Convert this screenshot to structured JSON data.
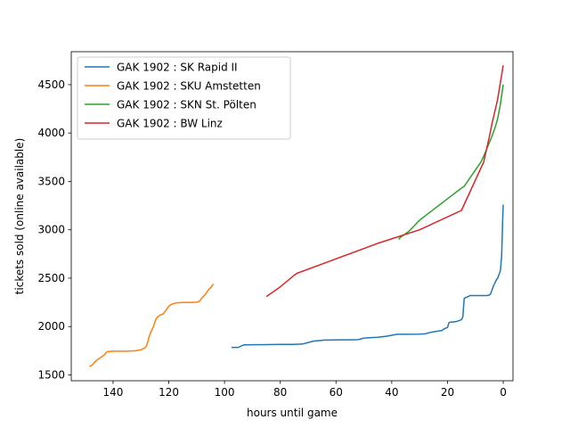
{
  "chart_data": {
    "type": "line",
    "title": "",
    "xlabel": "hours until game",
    "ylabel": "tickets sold (online available)",
    "xlim": [
      155,
      -3.5
    ],
    "ylim": [
      1440,
      4840
    ],
    "x_reversed": true,
    "xticks": [
      140,
      120,
      100,
      80,
      60,
      40,
      20,
      0
    ],
    "yticks": [
      1500,
      2000,
      2500,
      3000,
      3500,
      4000,
      4500
    ],
    "grid": false,
    "legend_position": "top-left",
    "series": [
      {
        "name": "GAK 1902 : SK Rapid II",
        "color": "#1f77b4",
        "points": [
          [
            97.5,
            1785
          ],
          [
            95,
            1785
          ],
          [
            94,
            1800
          ],
          [
            93,
            1810
          ],
          [
            90,
            1812
          ],
          [
            85,
            1813
          ],
          [
            80,
            1815
          ],
          [
            75,
            1816
          ],
          [
            72,
            1820
          ],
          [
            70,
            1835
          ],
          [
            68,
            1850
          ],
          [
            66,
            1855
          ],
          [
            64,
            1860
          ],
          [
            60,
            1862
          ],
          [
            55,
            1863
          ],
          [
            52,
            1865
          ],
          [
            50,
            1880
          ],
          [
            48,
            1885
          ],
          [
            45,
            1890
          ],
          [
            42,
            1900
          ],
          [
            40,
            1910
          ],
          [
            38,
            1920
          ],
          [
            35,
            1920
          ],
          [
            30,
            1922
          ],
          [
            28,
            1925
          ],
          [
            26,
            1940
          ],
          [
            24,
            1950
          ],
          [
            22,
            1960
          ],
          [
            21,
            1980
          ],
          [
            20,
            1990
          ],
          [
            19.5,
            2040
          ],
          [
            19,
            2045
          ],
          [
            17,
            2050
          ],
          [
            16,
            2060
          ],
          [
            15,
            2070
          ],
          [
            14.5,
            2100
          ],
          [
            14,
            2290
          ],
          [
            13.5,
            2300
          ],
          [
            12.5,
            2310
          ],
          [
            12,
            2320
          ],
          [
            10,
            2320
          ],
          [
            6,
            2320
          ],
          [
            5,
            2325
          ],
          [
            4.5,
            2340
          ],
          [
            4,
            2380
          ],
          [
            3.5,
            2420
          ],
          [
            3,
            2450
          ],
          [
            2.5,
            2480
          ],
          [
            2,
            2500
          ],
          [
            1.5,
            2540
          ],
          [
            1,
            2580
          ],
          [
            0.8,
            2650
          ],
          [
            0.6,
            2720
          ],
          [
            0.5,
            2800
          ],
          [
            0.4,
            2900
          ],
          [
            0.3,
            3000
          ],
          [
            0.2,
            3100
          ],
          [
            0,
            3260
          ]
        ]
      },
      {
        "name": "GAK 1902 : SKU Amstetten",
        "color": "#ff7f0e",
        "points": [
          [
            148.5,
            1590
          ],
          [
            148,
            1595
          ],
          [
            147.5,
            1600
          ],
          [
            147,
            1620
          ],
          [
            146,
            1650
          ],
          [
            145.5,
            1660
          ],
          [
            145,
            1670
          ],
          [
            144.5,
            1680
          ],
          [
            144,
            1690
          ],
          [
            143.5,
            1700
          ],
          [
            143,
            1710
          ],
          [
            142.5,
            1730
          ],
          [
            142,
            1740
          ],
          [
            140,
            1745
          ],
          [
            135,
            1745
          ],
          [
            132,
            1750
          ],
          [
            130,
            1760
          ],
          [
            128.5,
            1780
          ],
          [
            128,
            1800
          ],
          [
            127.5,
            1850
          ],
          [
            127,
            1900
          ],
          [
            126.5,
            1940
          ],
          [
            126,
            1970
          ],
          [
            125.5,
            2000
          ],
          [
            125,
            2050
          ],
          [
            124.5,
            2080
          ],
          [
            124,
            2100
          ],
          [
            123.5,
            2110
          ],
          [
            123,
            2120
          ],
          [
            122,
            2130
          ],
          [
            121.5,
            2150
          ],
          [
            121,
            2170
          ],
          [
            120.5,
            2190
          ],
          [
            120,
            2210
          ],
          [
            119,
            2230
          ],
          [
            118,
            2240
          ],
          [
            117,
            2245
          ],
          [
            115,
            2248
          ],
          [
            112,
            2250
          ],
          [
            110,
            2252
          ],
          [
            109,
            2260
          ],
          [
            108.5,
            2280
          ],
          [
            108,
            2300
          ],
          [
            107,
            2330
          ],
          [
            106,
            2370
          ],
          [
            105.5,
            2390
          ],
          [
            105,
            2400
          ],
          [
            104.5,
            2420
          ],
          [
            104,
            2440
          ]
        ]
      },
      {
        "name": "GAK 1902 : SKN St. Pölten",
        "color": "#2ca02c",
        "points": [
          [
            37.5,
            2900
          ],
          [
            37,
            2920
          ],
          [
            36,
            2940
          ],
          [
            34,
            2980
          ],
          [
            32,
            3040
          ],
          [
            30,
            3100
          ],
          [
            15,
            3430
          ],
          [
            14,
            3450
          ],
          [
            8,
            3700
          ],
          [
            7,
            3760
          ],
          [
            6,
            3830
          ],
          [
            5,
            3900
          ],
          [
            4,
            3970
          ],
          [
            3,
            4050
          ],
          [
            2,
            4150
          ],
          [
            1,
            4300
          ],
          [
            0,
            4500
          ]
        ]
      },
      {
        "name": "GAK 1902 : BW Linz",
        "color": "#d62728",
        "points": [
          [
            85,
            2310
          ],
          [
            80,
            2410
          ],
          [
            75,
            2530
          ],
          [
            74,
            2550
          ],
          [
            60,
            2700
          ],
          [
            45,
            2860
          ],
          [
            30,
            3000
          ],
          [
            15,
            3200
          ],
          [
            7,
            3700
          ],
          [
            5,
            3960
          ],
          [
            4,
            4100
          ],
          [
            2,
            4350
          ],
          [
            0,
            4700
          ]
        ]
      }
    ]
  }
}
